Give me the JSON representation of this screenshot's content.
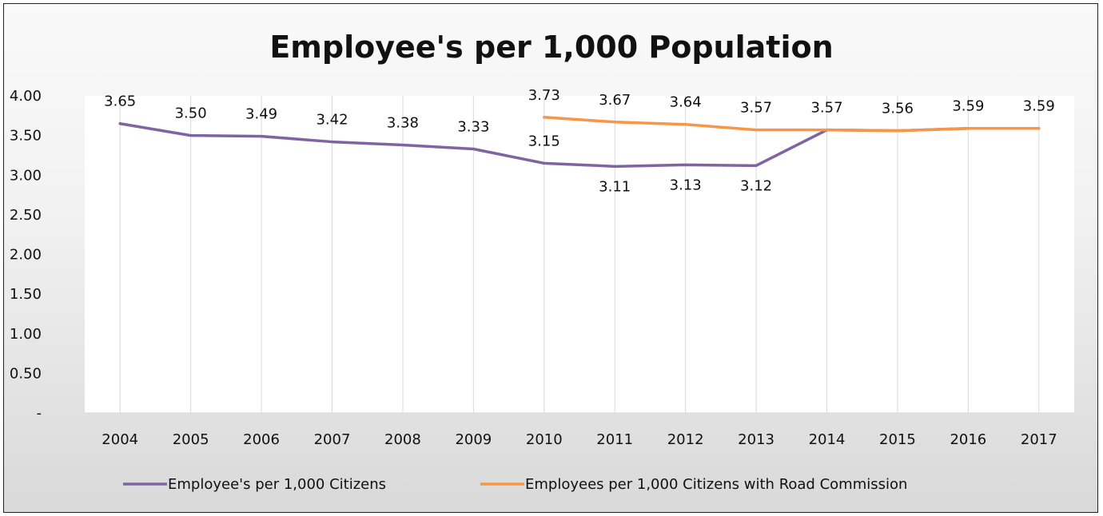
{
  "chart_data": {
    "type": "line",
    "title": "Employee's per 1,000 Population",
    "xlabel": "",
    "ylabel": "",
    "categories": [
      "2004",
      "2005",
      "2006",
      "2007",
      "2008",
      "2009",
      "2010",
      "2011",
      "2012",
      "2013",
      "2014",
      "2015",
      "2016",
      "2017"
    ],
    "ylim": [
      0,
      4
    ],
    "yticks": [
      {
        "value": 0,
        "label": "-"
      },
      {
        "value": 0.5,
        "label": "0.50"
      },
      {
        "value": 1.0,
        "label": "1.00"
      },
      {
        "value": 1.5,
        "label": "1.50"
      },
      {
        "value": 2.0,
        "label": "2.00"
      },
      {
        "value": 2.5,
        "label": "2.50"
      },
      {
        "value": 3.0,
        "label": "3.00"
      },
      {
        "value": 3.5,
        "label": "3.50"
      },
      {
        "value": 4.0,
        "label": "4.00"
      }
    ],
    "grid": "vertical",
    "legend_position": "bottom",
    "series": [
      {
        "name": "Employee's per 1,000 Citizens",
        "color": "#8064a2",
        "values": [
          3.65,
          3.5,
          3.49,
          3.42,
          3.38,
          3.33,
          3.15,
          3.11,
          3.13,
          3.12,
          3.57,
          3.56,
          3.59,
          3.59
        ],
        "labels": [
          "3.65",
          "3.50",
          "3.49",
          "3.42",
          "3.38",
          "3.33",
          "3.15",
          "3.11",
          "3.13",
          "3.12",
          null,
          null,
          null,
          null
        ],
        "label_position": [
          "above",
          "above",
          "above",
          "above",
          "above",
          "above",
          "above",
          "below",
          "below",
          "below",
          null,
          null,
          null,
          null
        ]
      },
      {
        "name": "Employees per 1,000 Citizens with Road Commission",
        "color": "#f79646",
        "values": [
          null,
          null,
          null,
          null,
          null,
          null,
          3.73,
          3.67,
          3.64,
          3.57,
          3.57,
          3.56,
          3.59,
          3.59
        ],
        "labels": [
          null,
          null,
          null,
          null,
          null,
          null,
          "3.73",
          "3.67",
          "3.64",
          "3.57",
          "3.57",
          "3.56",
          "3.59",
          "3.59"
        ],
        "label_position": [
          null,
          null,
          null,
          null,
          null,
          null,
          "above",
          "above",
          "above",
          "above",
          "above",
          "above",
          "above",
          "above"
        ]
      }
    ]
  }
}
